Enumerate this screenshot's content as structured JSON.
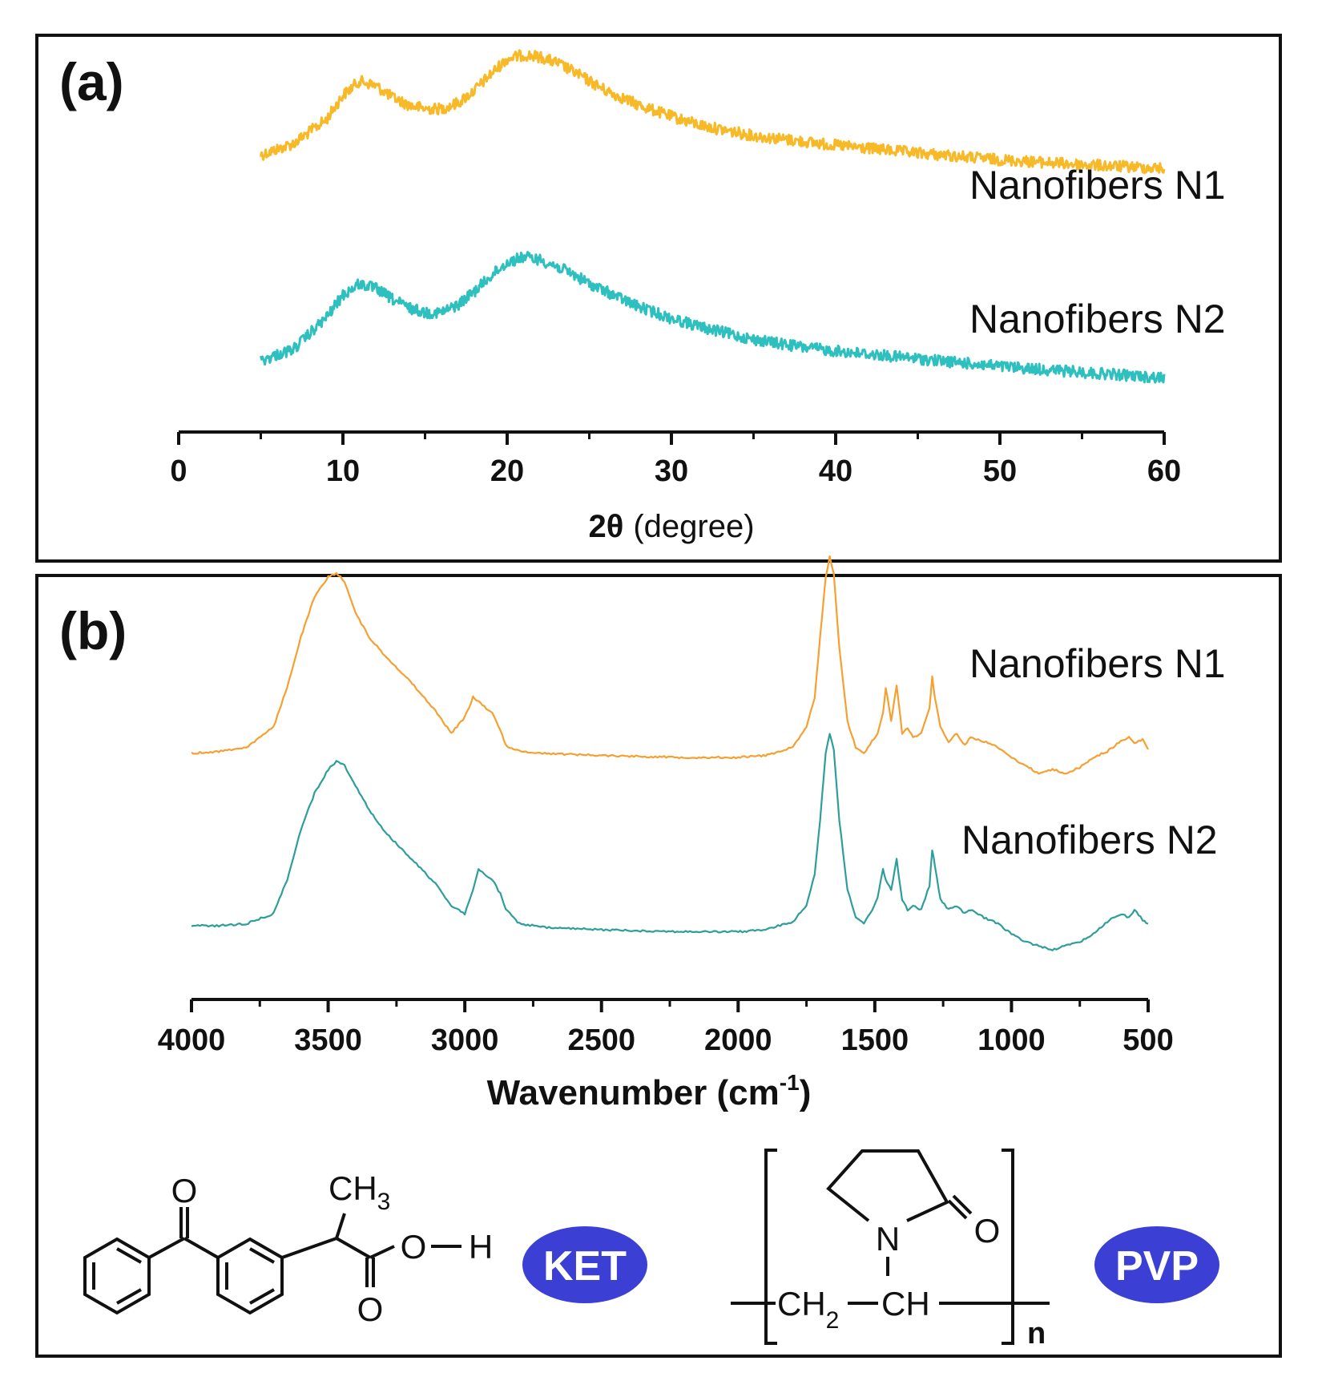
{
  "chart_data": [
    {
      "panel_label": "(a)",
      "type": "line",
      "title": "",
      "xlabel_symbol": "2θ",
      "xlabel_unit": "(degree)",
      "xlim": [
        0,
        60
      ],
      "x_ticks": [
        0,
        10,
        20,
        30,
        40,
        50,
        60
      ],
      "x_tick_labels": [
        "0",
        "10",
        "20",
        "30",
        "40",
        "50",
        "60"
      ],
      "ylabel": "",
      "legend": "inline labels, right side",
      "series": [
        {
          "name": "Nanofibers N1",
          "color": "#f7b928",
          "noise": "high",
          "x": [
            5,
            7,
            9,
            10,
            11,
            12,
            13,
            14,
            15,
            16,
            17,
            18,
            19,
            20,
            21,
            22,
            23,
            24,
            25,
            26,
            28,
            30,
            32,
            35,
            38,
            40,
            45,
            50,
            55,
            60
          ],
          "y": [
            0.78,
            0.9,
            1.15,
            1.4,
            1.55,
            1.5,
            1.38,
            1.3,
            1.26,
            1.26,
            1.32,
            1.45,
            1.62,
            1.78,
            1.82,
            1.8,
            1.74,
            1.65,
            1.55,
            1.45,
            1.3,
            1.18,
            1.08,
            0.98,
            0.92,
            0.88,
            0.8,
            0.73,
            0.68,
            0.64
          ]
        },
        {
          "name": "Nanofibers N2",
          "color": "#2ebfbf",
          "noise": "high",
          "x": [
            5,
            7,
            9,
            10,
            11,
            12,
            13,
            14,
            15,
            16,
            17,
            18,
            19,
            20,
            21,
            22,
            23,
            24,
            25,
            26,
            28,
            30,
            32,
            35,
            38,
            40,
            45,
            50,
            55,
            60
          ],
          "y": [
            0.0,
            0.12,
            0.45,
            0.68,
            0.8,
            0.75,
            0.64,
            0.55,
            0.5,
            0.5,
            0.58,
            0.72,
            0.88,
            1.02,
            1.08,
            1.05,
            0.98,
            0.9,
            0.8,
            0.72,
            0.56,
            0.44,
            0.34,
            0.22,
            0.14,
            0.1,
            0.02,
            -0.06,
            -0.12,
            -0.18
          ]
        }
      ]
    },
    {
      "panel_label": "(b)",
      "type": "line",
      "title": "",
      "xlabel_main": "Wavenumber (cm",
      "xlabel_sup": "-1",
      "xlabel_close": ")",
      "xlim": [
        4000,
        500
      ],
      "x_ticks": [
        4000,
        3500,
        3000,
        2500,
        2000,
        1500,
        1000,
        500
      ],
      "x_tick_labels": [
        "4000",
        "3500",
        "3000",
        "2500",
        "2000",
        "1500",
        "1000",
        "500"
      ],
      "ylabel": "",
      "legend": "inline labels, right side",
      "series": [
        {
          "name": "Nanofibers N1",
          "color": "#f5a031",
          "noise": "low",
          "x": [
            4000,
            3900,
            3800,
            3700,
            3650,
            3600,
            3550,
            3500,
            3470,
            3440,
            3400,
            3350,
            3300,
            3200,
            3100,
            3050,
            3000,
            2970,
            2950,
            2900,
            2870,
            2850,
            2800,
            2700,
            2500,
            2200,
            2000,
            1900,
            1800,
            1750,
            1720,
            1700,
            1680,
            1665,
            1650,
            1630,
            1600,
            1570,
            1540,
            1510,
            1490,
            1470,
            1460,
            1440,
            1420,
            1400,
            1380,
            1360,
            1330,
            1300,
            1290,
            1280,
            1260,
            1230,
            1200,
            1170,
            1150,
            1100,
            1050,
            1000,
            950,
            900,
            850,
            800,
            750,
            700,
            650,
            600,
            570,
            550,
            520,
            500
          ],
          "y": [
            0.02,
            0.03,
            0.05,
            0.15,
            0.35,
            0.6,
            0.8,
            0.9,
            0.92,
            0.88,
            0.72,
            0.6,
            0.52,
            0.38,
            0.22,
            0.12,
            0.2,
            0.3,
            0.28,
            0.22,
            0.14,
            0.06,
            0.03,
            0.02,
            0.01,
            0.0,
            0.0,
            0.01,
            0.05,
            0.15,
            0.3,
            0.6,
            0.9,
            1.0,
            0.92,
            0.55,
            0.18,
            0.05,
            0.02,
            0.08,
            0.12,
            0.22,
            0.35,
            0.18,
            0.36,
            0.12,
            0.15,
            0.1,
            0.12,
            0.25,
            0.4,
            0.3,
            0.15,
            0.08,
            0.12,
            0.06,
            0.1,
            0.08,
            0.05,
            0.0,
            -0.04,
            -0.08,
            -0.06,
            -0.08,
            -0.05,
            0.0,
            0.03,
            0.08,
            0.1,
            0.07,
            0.09,
            0.04
          ]
        },
        {
          "name": "Nanofibers N2",
          "color": "#2e9e9b",
          "noise": "low",
          "x": [
            4000,
            3900,
            3800,
            3700,
            3650,
            3600,
            3550,
            3500,
            3470,
            3440,
            3400,
            3350,
            3300,
            3200,
            3100,
            3050,
            3000,
            2970,
            2950,
            2900,
            2870,
            2850,
            2800,
            2700,
            2500,
            2200,
            2000,
            1900,
            1800,
            1750,
            1720,
            1700,
            1680,
            1665,
            1650,
            1630,
            1600,
            1570,
            1540,
            1510,
            1490,
            1470,
            1460,
            1440,
            1420,
            1400,
            1380,
            1360,
            1330,
            1300,
            1290,
            1280,
            1260,
            1230,
            1200,
            1170,
            1150,
            1100,
            1050,
            1000,
            950,
            900,
            850,
            800,
            750,
            700,
            650,
            600,
            570,
            550,
            520,
            500
          ],
          "y": [
            0.02,
            0.02,
            0.03,
            0.08,
            0.25,
            0.5,
            0.68,
            0.8,
            0.84,
            0.82,
            0.72,
            0.6,
            0.5,
            0.36,
            0.22,
            0.12,
            0.08,
            0.2,
            0.3,
            0.25,
            0.18,
            0.1,
            0.03,
            0.01,
            0.0,
            -0.01,
            -0.01,
            0.0,
            0.04,
            0.12,
            0.28,
            0.55,
            0.88,
            0.98,
            0.9,
            0.55,
            0.2,
            0.06,
            0.03,
            0.1,
            0.16,
            0.3,
            0.25,
            0.2,
            0.35,
            0.15,
            0.1,
            0.12,
            0.1,
            0.22,
            0.4,
            0.32,
            0.15,
            0.1,
            0.12,
            0.08,
            0.1,
            0.06,
            0.03,
            -0.02,
            -0.06,
            -0.08,
            -0.1,
            -0.08,
            -0.06,
            -0.02,
            0.04,
            0.08,
            0.06,
            0.1,
            0.05,
            0.03
          ]
        }
      ]
    }
  ],
  "structures": {
    "ket": {
      "label": "KET",
      "badge_color": "#3b3fd4",
      "atoms": {
        "ketone_o": "O",
        "methyl_c": "CH",
        "methyl_sub": "3",
        "hydroxyl_o": "O",
        "hydroxyl_h": "H",
        "carbonyl_o": "O"
      }
    },
    "pvp": {
      "label": "PVP",
      "badge_color": "#3b3fd4",
      "atoms": {
        "ring_n": "N",
        "ring_o": "O",
        "chain_ch2": "CH",
        "chain_sub": "2",
        "chain_ch": "CH",
        "repeat_n": "n"
      }
    }
  }
}
